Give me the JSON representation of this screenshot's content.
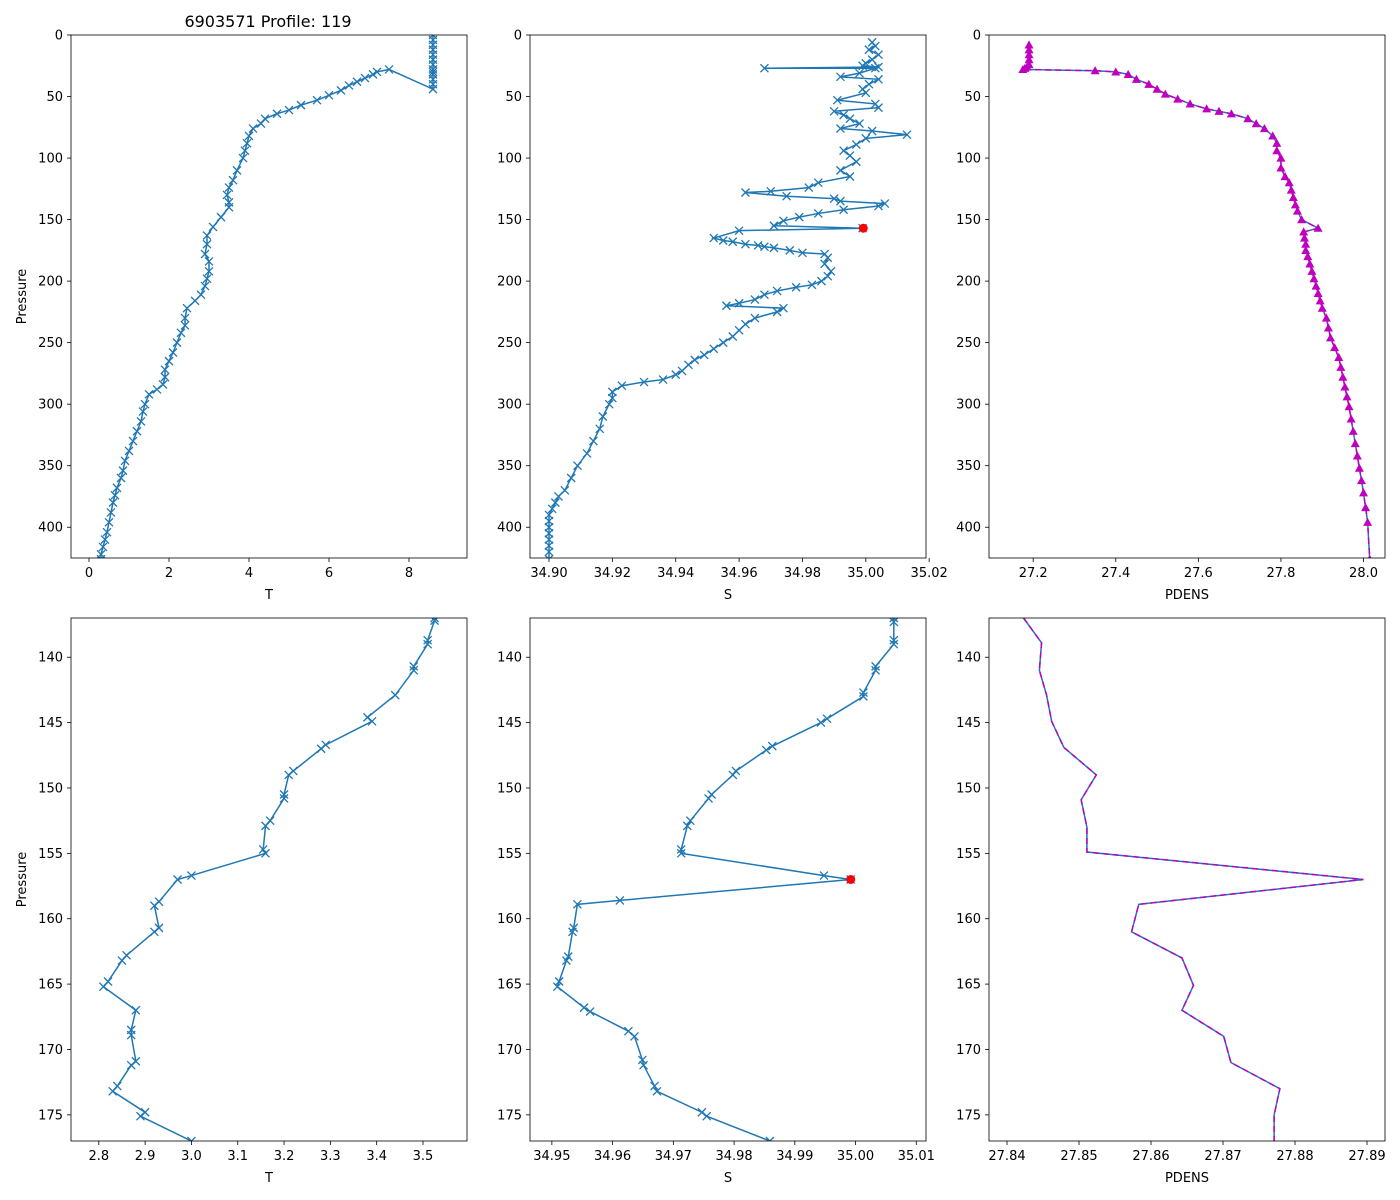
{
  "figure_title": "6903571 Profile: 119",
  "colors": {
    "line": "#1f77b4",
    "magenta": "#bf00bf",
    "flag": "#ff0000"
  },
  "chart_data": [
    {
      "id": "top-t",
      "type": "line",
      "title": "6903571 Profile: 119",
      "xlabel": "T",
      "ylabel": "Pressure",
      "xlim": [
        -0.45,
        9.45
      ],
      "ylim": [
        425,
        0
      ],
      "xticks": [
        0,
        2,
        4,
        6,
        8
      ],
      "yticks": [
        0,
        50,
        100,
        150,
        200,
        250,
        300,
        350,
        400
      ],
      "xtick_labels": [
        "0",
        "2",
        "4",
        "6",
        "8"
      ],
      "ytick_labels": [
        "0",
        "50",
        "100",
        "150",
        "200",
        "250",
        "300",
        "350",
        "400"
      ],
      "marker": "x",
      "series": [
        {
          "name": "T",
          "x": [
            8.6,
            8.6,
            8.6,
            8.6,
            8.6,
            8.6,
            8.6,
            8.6,
            8.6,
            8.6,
            8.6,
            8.6,
            8.6,
            7.5,
            7.2,
            7.1,
            6.9,
            6.7,
            6.5,
            6.3,
            6.0,
            5.7,
            5.3,
            5.0,
            4.7,
            4.4,
            4.3,
            4.1,
            4.0,
            3.95,
            3.9,
            3.85,
            3.7,
            3.6,
            3.5,
            3.45,
            3.5,
            3.5,
            3.3,
            3.1,
            2.95,
            2.95,
            2.9,
            3.0,
            3.0,
            2.95,
            2.9,
            2.8,
            2.65,
            2.45,
            2.4,
            2.4,
            2.3,
            2.2,
            2.1,
            2.0,
            1.9,
            1.9,
            1.85,
            1.7,
            1.5,
            1.4,
            1.35,
            1.3,
            1.2,
            1.1,
            1.0,
            0.9,
            0.85,
            0.8,
            0.7,
            0.65,
            0.6,
            0.55,
            0.5,
            0.45,
            0.4,
            0.35,
            0.3,
            0.3
          ],
          "y": [
            0,
            4,
            8,
            12,
            16,
            20,
            24,
            28,
            30,
            32,
            36,
            40,
            44,
            28,
            30,
            32,
            35,
            38,
            41,
            45,
            49,
            53,
            57,
            61,
            64,
            68,
            72,
            76,
            82,
            88,
            94,
            100,
            110,
            118,
            124,
            130,
            136,
            140,
            148,
            156,
            163,
            170,
            178,
            184,
            192,
            198,
            204,
            211,
            216,
            222,
            230,
            236,
            242,
            250,
            258,
            265,
            272,
            278,
            284,
            288,
            292,
            300,
            306,
            314,
            322,
            330,
            338,
            346,
            354,
            360,
            368,
            374,
            380,
            388,
            396,
            404,
            410,
            416,
            422,
            426
          ]
        }
      ]
    },
    {
      "id": "top-s",
      "type": "line",
      "title": "",
      "xlabel": "S",
      "ylabel": "",
      "xlim": [
        34.894,
        35.019
      ],
      "ylim": [
        425,
        0
      ],
      "xticks": [
        34.9,
        34.92,
        34.94,
        34.96,
        34.98,
        35.0,
        35.02
      ],
      "yticks": [
        0,
        50,
        100,
        150,
        200,
        250,
        300,
        350,
        400
      ],
      "xtick_labels": [
        "34.90",
        "34.92",
        "34.94",
        "34.96",
        "34.98",
        "35.00",
        "35.02"
      ],
      "ytick_labels": [
        "0",
        "50",
        "100",
        "150",
        "200",
        "250",
        "300",
        "350",
        "400"
      ],
      "marker": "x",
      "series": [
        {
          "name": "S",
          "x": [
            35.002,
            35.003,
            35.001,
            35.004,
            35.002,
            35.0,
            34.999,
            35.004,
            34.968,
            35.003,
            34.998,
            34.992,
            35.004,
            35.001,
            34.999,
            35.0,
            34.991,
            35.003,
            35.004,
            34.99,
            34.993,
            34.995,
            34.998,
            34.992,
            35.002,
            35.013,
            35.0,
            34.997,
            34.993,
            34.995,
            34.997,
            34.992,
            34.995,
            34.985,
            34.982,
            34.97,
            34.962,
            34.975,
            34.99,
            34.992,
            35.006,
            35.004,
            34.993,
            34.985,
            34.979,
            34.974,
            34.971,
            34.999,
            34.96,
            34.952,
            34.955,
            34.958,
            34.962,
            34.966,
            34.968,
            34.971,
            34.976,
            34.98,
            34.987,
            34.988,
            34.987,
            34.989,
            34.988,
            34.986,
            34.983,
            34.978,
            34.972,
            34.968,
            34.965,
            34.96,
            34.956,
            34.974,
            34.972,
            34.965,
            34.962,
            34.96,
            34.958,
            34.955,
            34.952,
            34.949,
            34.946,
            34.944,
            34.942,
            34.94,
            34.936,
            34.93,
            34.923,
            34.92,
            34.92,
            34.919,
            34.917,
            34.916,
            34.914,
            34.912,
            34.909,
            34.907,
            34.905,
            34.903,
            34.902,
            34.901,
            34.9,
            34.9,
            34.9,
            34.9,
            34.9,
            34.9,
            34.9,
            34.9
          ],
          "y": [
            6,
            9,
            12,
            16,
            20,
            23,
            25,
            26,
            27,
            27,
            31,
            34,
            36,
            40,
            44,
            47,
            53,
            56,
            59,
            62,
            65,
            68,
            72,
            76,
            78,
            81,
            84,
            89,
            94,
            98,
            103,
            110,
            115,
            120,
            124,
            127,
            128,
            131,
            133,
            135,
            137,
            139,
            142,
            145,
            148,
            151,
            155,
            157,
            159,
            165,
            167,
            168,
            170,
            171,
            172,
            173,
            175,
            177,
            178,
            181,
            186,
            192,
            196,
            200,
            203,
            205,
            208,
            211,
            215,
            218,
            220,
            222,
            225,
            230,
            235,
            240,
            245,
            250,
            255,
            260,
            264,
            268,
            273,
            276,
            280,
            282,
            285,
            290,
            295,
            300,
            310,
            320,
            330,
            340,
            350,
            360,
            370,
            375,
            380,
            385,
            390,
            395,
            400,
            405,
            410,
            415,
            420,
            426
          ]
        }
      ],
      "flagged_point": {
        "x": 34.9992,
        "y": 157
      }
    },
    {
      "id": "top-pdens",
      "type": "line",
      "title": "",
      "xlabel": "PDENS",
      "ylabel": "",
      "xlim": [
        27.093,
        28.052
      ],
      "ylim": [
        425,
        0
      ],
      "xticks": [
        27.2,
        27.4,
        27.6,
        27.8,
        28.0
      ],
      "yticks": [
        0,
        50,
        100,
        150,
        200,
        250,
        300,
        350,
        400
      ],
      "xtick_labels": [
        "27.2",
        "27.4",
        "27.6",
        "27.8",
        "28.0"
      ],
      "ytick_labels": [
        "0",
        "50",
        "100",
        "150",
        "200",
        "250",
        "300",
        "350",
        "400"
      ],
      "marker": "triangle",
      "series": [
        {
          "name": "PDENS",
          "x": [
            27.19,
            27.19,
            27.19,
            27.19,
            27.19,
            27.185,
            27.18,
            27.175,
            27.35,
            27.4,
            27.43,
            27.45,
            27.48,
            27.5,
            27.52,
            27.55,
            27.58,
            27.62,
            27.65,
            27.68,
            27.72,
            27.74,
            27.76,
            27.78,
            27.79,
            27.79,
            27.8,
            27.8,
            27.81,
            27.82,
            27.825,
            27.83,
            27.835,
            27.84,
            27.85,
            27.89,
            27.855,
            27.857,
            27.86,
            27.86,
            27.865,
            27.87,
            27.875,
            27.88,
            27.885,
            27.89,
            27.895,
            27.9,
            27.91,
            27.915,
            27.92,
            27.93,
            27.94,
            27.945,
            27.95,
            27.955,
            27.96,
            27.965,
            27.97,
            27.975,
            27.98,
            27.985,
            27.99,
            27.995,
            28.0,
            28.005,
            28.01,
            28.015
          ],
          "y": [
            8,
            12,
            16,
            20,
            24,
            26,
            27,
            28,
            29,
            30,
            32,
            36,
            40,
            44,
            48,
            52,
            56,
            60,
            62,
            64,
            68,
            72,
            76,
            82,
            88,
            94,
            100,
            108,
            115,
            120,
            126,
            132,
            138,
            143,
            150,
            157,
            160,
            165,
            170,
            175,
            180,
            186,
            192,
            198,
            204,
            210,
            216,
            222,
            230,
            238,
            246,
            254,
            262,
            270,
            278,
            286,
            294,
            302,
            312,
            322,
            332,
            342,
            352,
            362,
            372,
            384,
            396,
            426
          ]
        }
      ]
    },
    {
      "id": "bottom-t",
      "type": "line",
      "title": "",
      "xlabel": "T",
      "ylabel": "Pressure",
      "xlim": [
        2.74,
        3.595
      ],
      "ylim": [
        177,
        137
      ],
      "xticks": [
        2.8,
        2.9,
        3.0,
        3.1,
        3.2,
        3.3,
        3.4,
        3.5
      ],
      "yticks": [
        140,
        145,
        150,
        155,
        160,
        165,
        170,
        175
      ],
      "xtick_labels": [
        "2.8",
        "2.9",
        "3.0",
        "3.1",
        "3.2",
        "3.3",
        "3.4",
        "3.5"
      ],
      "ytick_labels": [
        "140",
        "145",
        "150",
        "155",
        "160",
        "165",
        "170",
        "175"
      ],
      "marker": "x",
      "series": [
        {
          "name": "T",
          "x": [
            3.525,
            3.525,
            3.51,
            3.51,
            3.48,
            3.48,
            3.44,
            3.38,
            3.39,
            3.29,
            3.28,
            3.22,
            3.21,
            3.2,
            3.2,
            3.17,
            3.16,
            3.155,
            3.16,
            3.0,
            2.97,
            2.93,
            2.92,
            2.93,
            2.92,
            2.86,
            2.85,
            2.82,
            2.81,
            2.88,
            2.87,
            2.87,
            2.88,
            2.87,
            2.84,
            2.83,
            2.9,
            2.89,
            3.0
          ],
          "y": [
            137,
            137.2,
            138.7,
            139,
            140.7,
            141,
            142.9,
            144.6,
            144.9,
            146.7,
            147,
            148.7,
            149,
            150.5,
            150.8,
            152.5,
            152.9,
            154.7,
            155,
            156.7,
            157,
            158.7,
            159,
            160.7,
            161,
            162.8,
            163.2,
            164.8,
            165.2,
            167,
            168.5,
            168.9,
            170.9,
            171.2,
            172.8,
            173.2,
            174.8,
            175.1,
            177
          ]
        }
      ]
    },
    {
      "id": "bottom-s",
      "type": "line",
      "title": "",
      "xlabel": "S",
      "ylabel": "",
      "xlim": [
        34.9464,
        35.0116
      ],
      "ylim": [
        177,
        137
      ],
      "xticks": [
        34.95,
        34.96,
        34.97,
        34.98,
        34.99,
        35.0,
        35.01
      ],
      "yticks": [
        140,
        145,
        150,
        155,
        160,
        165,
        170,
        175
      ],
      "xtick_labels": [
        "34.95",
        "34.96",
        "34.97",
        "34.98",
        "34.99",
        "35.00",
        "35.01"
      ],
      "ytick_labels": [
        "140",
        "145",
        "150",
        "155",
        "160",
        "165",
        "170",
        "175"
      ],
      "marker": "x",
      "series": [
        {
          "name": "S",
          "x": [
            35.0063,
            35.0063,
            35.0063,
            35.0063,
            35.0033,
            35.0033,
            35.0013,
            35.0013,
            34.9953,
            34.9943,
            34.9863,
            34.9853,
            34.9803,
            34.9798,
            34.9763,
            34.9758,
            34.9728,
            34.9723,
            34.9713,
            34.9713,
            34.9948,
            34.9992,
            34.9612,
            34.9542,
            34.9536,
            34.9534,
            34.9527,
            34.9524,
            34.9512,
            34.9509,
            34.9553,
            34.9563,
            34.9626,
            34.9636,
            34.9649,
            34.9651,
            34.9669,
            34.9673,
            34.9747,
            34.9755,
            34.9859
          ],
          "y": [
            137,
            137.3,
            138.7,
            139,
            140.7,
            141,
            142.7,
            143,
            144.7,
            145,
            146.8,
            147.1,
            148.7,
            149,
            150.5,
            150.8,
            152.5,
            152.9,
            154.7,
            155,
            156.7,
            157,
            158.6,
            158.9,
            160.7,
            161,
            162.9,
            163.2,
            164.8,
            165.2,
            166.8,
            167.1,
            168.6,
            169,
            170.8,
            171.2,
            172.8,
            173.2,
            174.8,
            175.1,
            177
          ]
        }
      ],
      "flagged_point": {
        "x": 34.9992,
        "y": 157
      }
    },
    {
      "id": "bottom-pdens",
      "type": "line",
      "title": "",
      "xlabel": "PDENS",
      "ylabel": "",
      "xlim": [
        27.8375,
        27.8925
      ],
      "ylim": [
        177,
        137
      ],
      "xticks": [
        27.84,
        27.85,
        27.86,
        27.87,
        27.88,
        27.89
      ],
      "yticks": [
        140,
        145,
        150,
        155,
        160,
        165,
        170,
        175
      ],
      "xtick_labels": [
        "27.84",
        "27.85",
        "27.86",
        "27.87",
        "27.88",
        "27.89"
      ],
      "ytick_labels": [
        "140",
        "145",
        "150",
        "155",
        "160",
        "165",
        "170",
        "175"
      ],
      "marker": "none",
      "series": [
        {
          "name": "PDENS",
          "x": [
            27.8423,
            27.8448,
            27.8445,
            27.8455,
            27.8462,
            27.8479,
            27.8524,
            27.8503,
            27.8511,
            27.8511,
            27.8895,
            27.8583,
            27.8573,
            27.8643,
            27.8659,
            27.8643,
            27.8701,
            27.8711,
            27.8779,
            27.8771,
            27.8771
          ],
          "y": [
            137,
            138.9,
            141,
            142.9,
            144.9,
            146.9,
            149,
            150.9,
            153,
            154.9,
            157,
            158.9,
            161,
            163,
            165.1,
            167,
            169,
            171,
            173,
            175,
            177
          ]
        }
      ]
    }
  ]
}
